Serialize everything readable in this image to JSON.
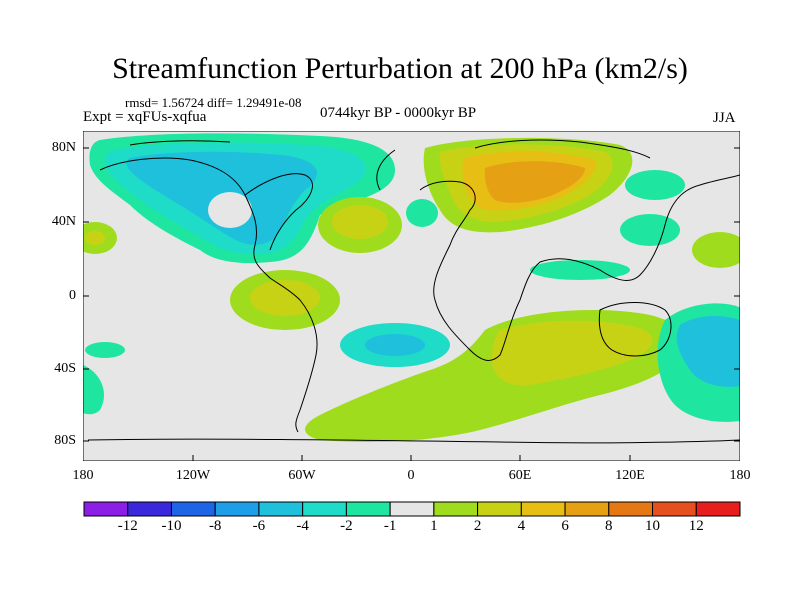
{
  "title": "Streamfunction Perturbation at 200 hPa (km2/s)",
  "stats": "rmsd= 1.56724 diff= 1.29491e-08",
  "experiment": "Expt = xqFUs-xqfua",
  "period": "0744kyr BP - 0000kyr BP",
  "season": "JJA",
  "lat_labels": [
    "80N",
    "40N",
    "0",
    "40S",
    "80S"
  ],
  "lon_labels": [
    "180",
    "120W",
    "60W",
    "0",
    "60E",
    "120E",
    "180"
  ],
  "colorbar": {
    "colors": [
      "#8c1ee6",
      "#3c28dc",
      "#1e64e6",
      "#1e9ee8",
      "#1ec0dc",
      "#1edcc8",
      "#1ee6a0",
      "#e6e6e6",
      "#a0dc1e",
      "#c8d214",
      "#e6be14",
      "#e6a014",
      "#e67814",
      "#e6501e",
      "#e61e1e"
    ],
    "labels": [
      "-12",
      "-10",
      "-8",
      "-6",
      "-4",
      "-2",
      "-1",
      "1",
      "2",
      "4",
      "6",
      "8",
      "10",
      "12"
    ]
  },
  "field_colors": {
    "background": "#e6e6e6",
    "pos1": "#a0dc1e",
    "pos2": "#c8d214",
    "pos3": "#e6be14",
    "pos4": "#e6a014",
    "neg1": "#1ee6a0",
    "neg2": "#1edcc8",
    "neg3": "#1ec0dc",
    "neg4": "#1e9ee8"
  }
}
